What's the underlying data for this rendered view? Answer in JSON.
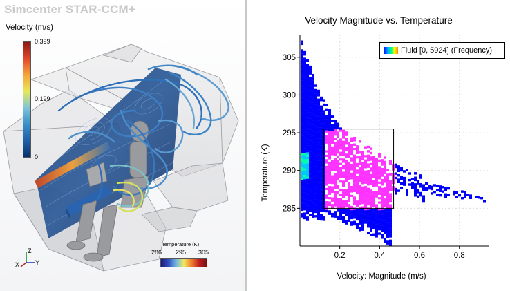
{
  "app": {
    "brand": "Simcenter STAR-CCM+"
  },
  "velocity_scale": {
    "title": "Velocity (m/s)",
    "max_label": "0.399",
    "mid_label": "0.199",
    "min_label": "0",
    "colors": [
      "#08306b",
      "#1f5fa8",
      "#3a8fc8",
      "#7fc4d8",
      "#e6e85a",
      "#f7a43a",
      "#e0472a",
      "#8e1a16"
    ]
  },
  "temperature_scale": {
    "title": "Temperature (K)",
    "ticks": [
      "286",
      "295",
      "305"
    ],
    "colors": [
      "#1a1a7a",
      "#3050c0",
      "#70b8e0",
      "#f0e860",
      "#f08030",
      "#c02020",
      "#7a1010"
    ]
  },
  "triad": {
    "z": "Z",
    "x": "X",
    "y": "Y"
  },
  "chart_data": {
    "type": "heatmap",
    "title": "Velocity Magnitude vs. Temperature",
    "xlabel": "Velocity: Magnitude (m/s)",
    "ylabel": "Temperature (K)",
    "xlim": [
      0,
      0.95
    ],
    "ylim": [
      280,
      308
    ],
    "xticks": [
      0.2,
      0.4,
      0.6,
      0.8
    ],
    "xtick_labels": [
      "0.2",
      "0.4",
      "0.6",
      "0.8"
    ],
    "yticks": [
      285,
      290,
      295,
      300,
      305
    ],
    "ytick_labels": [
      "285",
      "290",
      "295",
      "300",
      "305"
    ],
    "legend": "Fluid [0, 5924] (Frequency)",
    "frequency_range": [
      0,
      5924
    ],
    "grid": true,
    "selection_box": {
      "x": [
        0.12,
        0.47
      ],
      "y": [
        285,
        295.5
      ]
    },
    "regions": [
      {
        "name": "main-band",
        "color": "#0000ff",
        "description_points": [
          [
            0.0,
            308
          ],
          [
            0.08,
            300
          ],
          [
            0.2,
            295
          ],
          [
            0.47,
            290
          ],
          [
            0.95,
            286
          ]
        ]
      },
      {
        "name": "highlighted",
        "color": "#ff33ff"
      }
    ]
  }
}
